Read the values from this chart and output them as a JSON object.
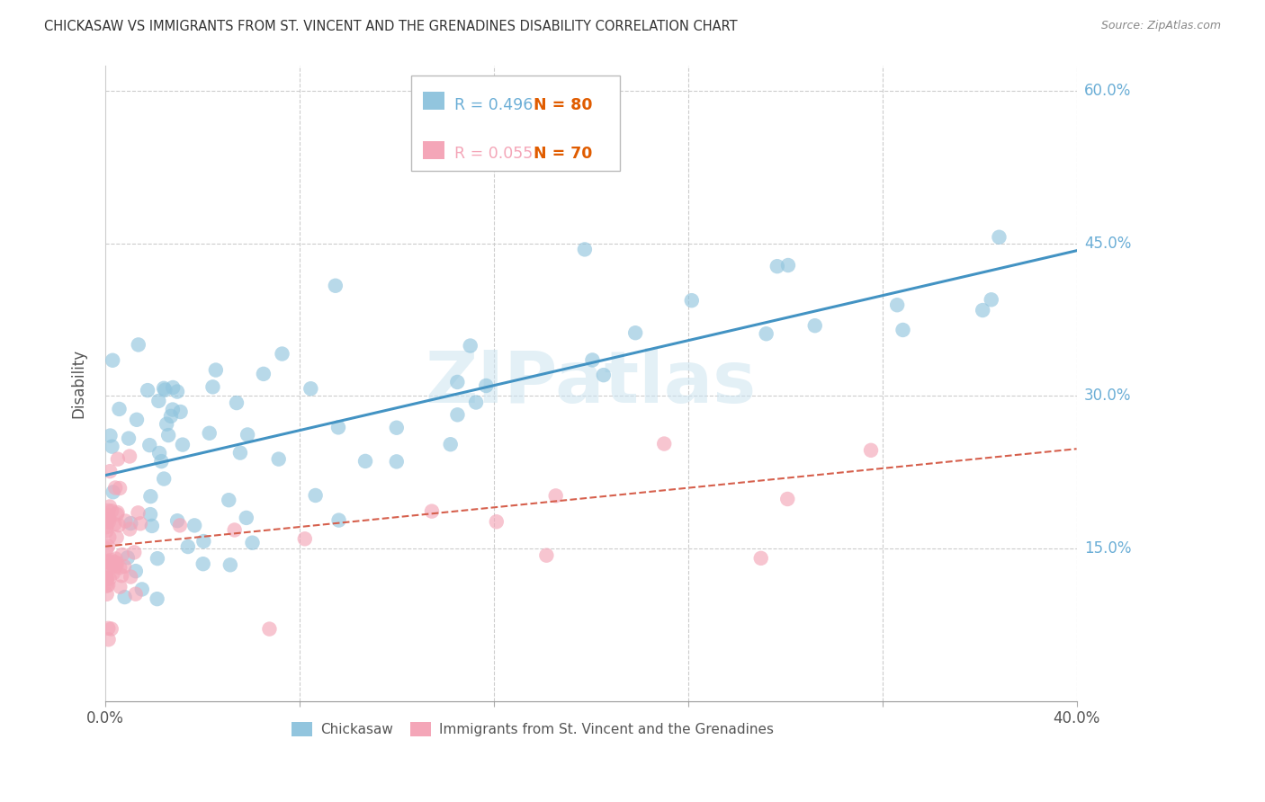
{
  "title": "CHICKASAW VS IMMIGRANTS FROM ST. VINCENT AND THE GRENADINES DISABILITY CORRELATION CHART",
  "source": "Source: ZipAtlas.com",
  "ylabel": "Disability",
  "x_min": 0.0,
  "x_max": 0.4,
  "y_min": 0.0,
  "y_max": 0.625,
  "y_tick_labels_right": [
    "60.0%",
    "45.0%",
    "30.0%",
    "15.0%"
  ],
  "y_tick_positions_right": [
    0.6,
    0.45,
    0.3,
    0.15
  ],
  "blue_color": "#92c5de",
  "pink_color": "#f4a6b8",
  "blue_line_color": "#4393c3",
  "pink_line_color": "#d6604d",
  "grid_color": "#cccccc",
  "label_color": "#6baed6",
  "orange_color": "#e05c00",
  "watermark": "ZIPatlas",
  "blue_line_x0": 0.0,
  "blue_line_x1": 0.4,
  "blue_line_y0": 0.222,
  "blue_line_y1": 0.443,
  "pink_line_x0": 0.0,
  "pink_line_x1": 0.4,
  "pink_line_y0": 0.152,
  "pink_line_y1": 0.248
}
